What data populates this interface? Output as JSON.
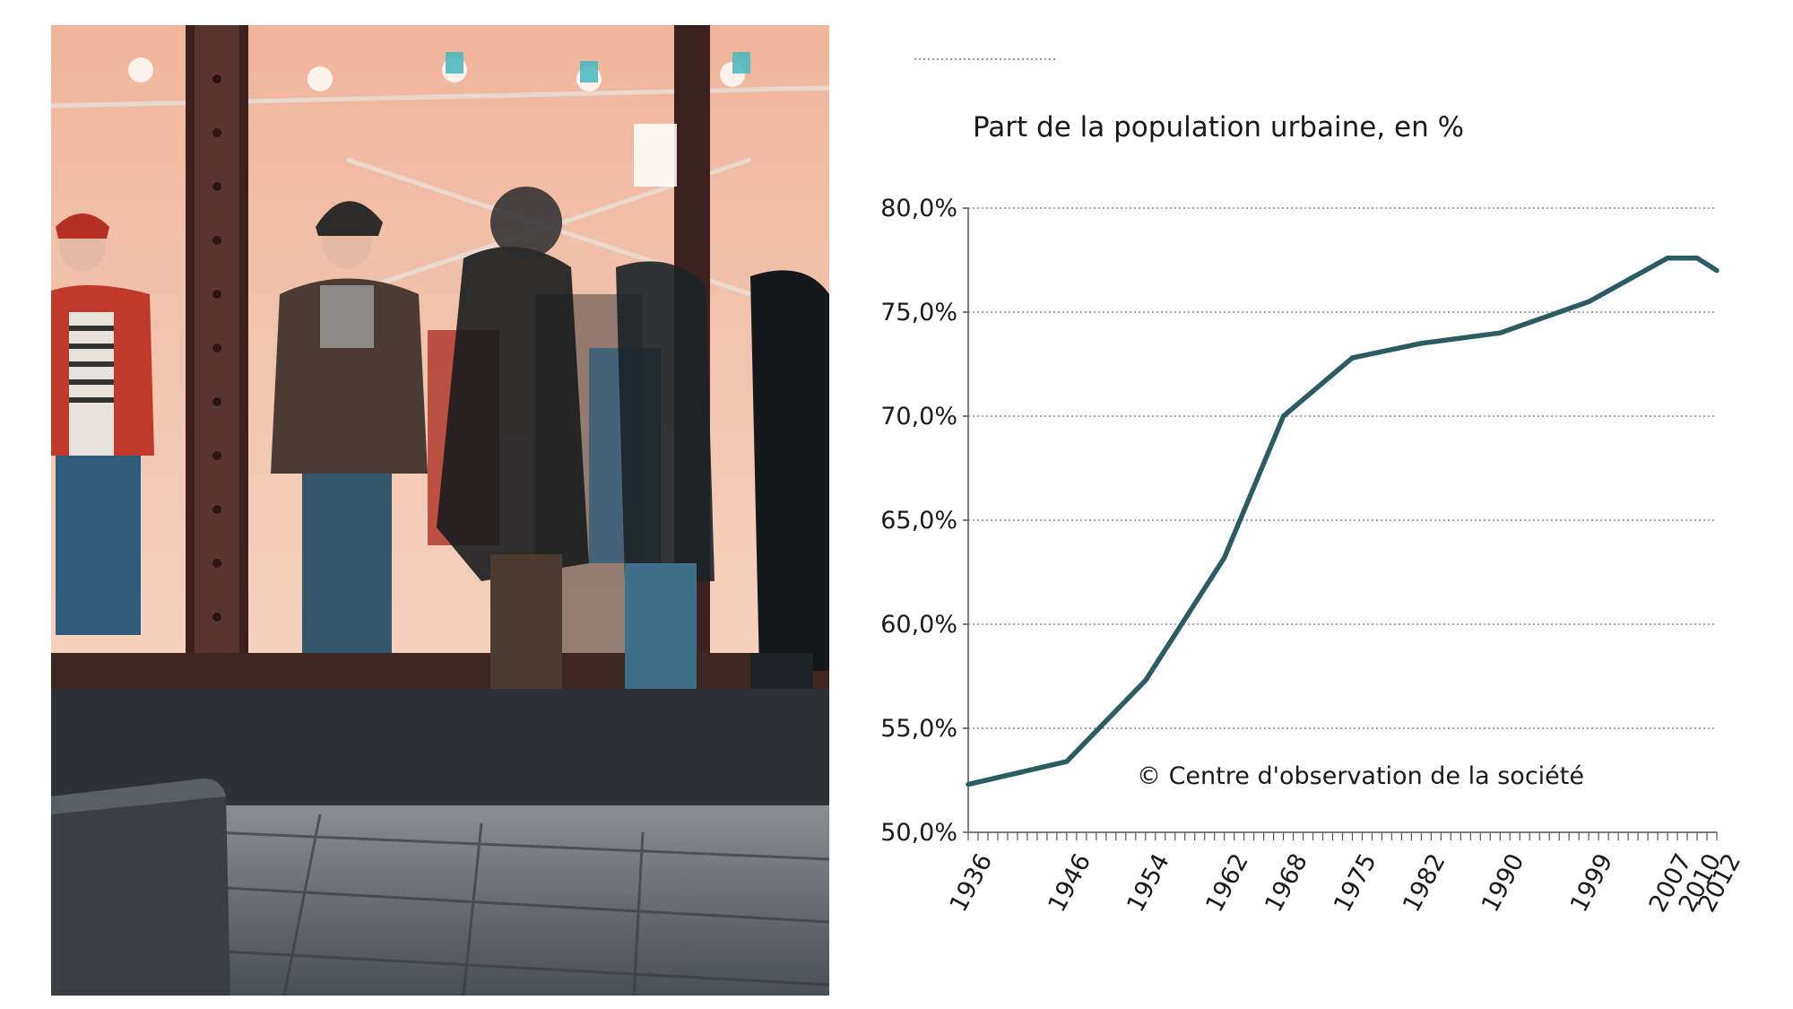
{
  "chart_data": {
    "type": "line",
    "title": "Part de la population urbaine, en %",
    "annotation": "© Centre d'observation de la société",
    "x": [
      1936,
      1946,
      1954,
      1962,
      1968,
      1975,
      1982,
      1990,
      1999,
      2007,
      2010,
      2012
    ],
    "x_tick_labels": [
      "1936",
      "1946",
      "1954",
      "1962",
      "1968",
      "1975",
      "1982",
      "1990",
      "1999",
      "2007",
      "2010",
      "2012"
    ],
    "series": [
      {
        "values": [
          52.3,
          53.4,
          57.3,
          63.2,
          70.0,
          72.8,
          73.5,
          74.0,
          75.5,
          77.6,
          77.6,
          77.0
        ]
      }
    ],
    "ylim": [
      50,
      80
    ],
    "y_ticks": [
      50,
      55,
      60,
      65,
      70,
      75,
      80
    ],
    "y_tick_labels": [
      "50,0%",
      "55,0%",
      "60,0%",
      "65,0%",
      "70,0%",
      "75,0%",
      "80,0%"
    ],
    "grid": "horizontal dotted",
    "line_color": "#2b5b63"
  },
  "photo": {
    "subject": "storefront-with-pedestrians"
  }
}
